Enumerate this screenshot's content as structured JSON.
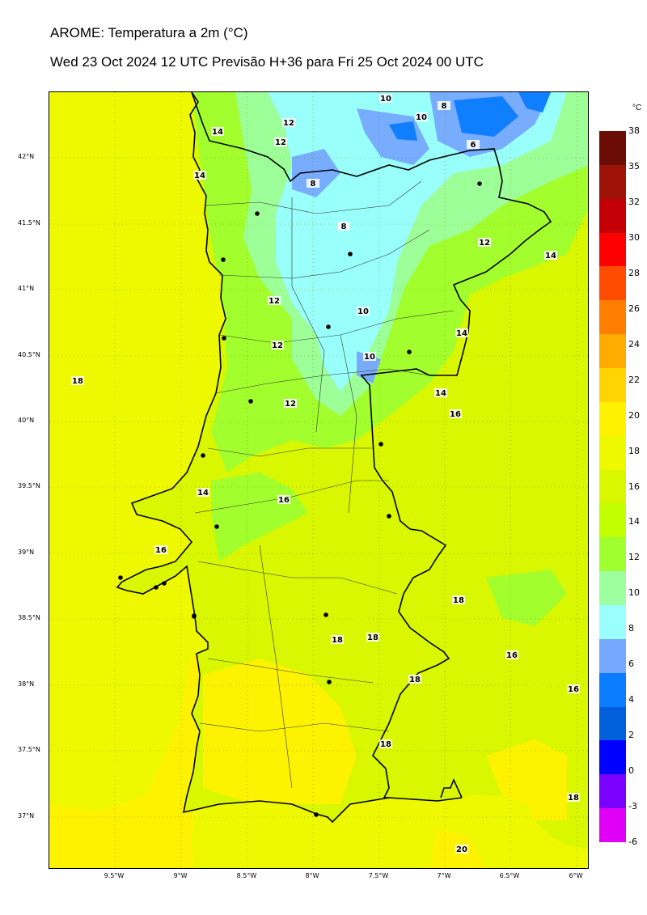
{
  "header": {
    "title": "AROME: Temperatura a 2m (°C)",
    "subtitle": "Wed 23 Oct 2024 12 UTC Previsão H+36 para Fri 25 Oct 2024 00 UTC"
  },
  "map": {
    "latitude_ticks": [
      "42°N",
      "41.5°N",
      "41°N",
      "40.5°N",
      "40°N",
      "39.5°N",
      "39°N",
      "38.5°N",
      "38°N",
      "37.5°N",
      "37°N"
    ],
    "longitude_ticks": [
      "9.5°W",
      "9°W",
      "8.5°W",
      "8°W",
      "7.5°W",
      "7°W",
      "6.5°W",
      "6°W"
    ],
    "contour_labels": [
      "10",
      "10",
      "8",
      "6",
      "12",
      "12",
      "14",
      "14",
      "8",
      "8",
      "12",
      "14",
      "12",
      "10",
      "14",
      "12",
      "10",
      "18",
      "12",
      "14",
      "16",
      "14",
      "16",
      "16",
      "18",
      "18",
      "18",
      "16",
      "18",
      "16",
      "18",
      "18",
      "20"
    ],
    "cities": 20,
    "colors": {
      "ocean": "#eef900",
      "ocean_warm": "#fff200",
      "land_base": "#d8f700",
      "cool_12": "#9fff2f",
      "cool_10": "#9dff9d",
      "cool_8": "#99ffff",
      "cold_6": "#76a8ff",
      "cold_4": "#0a7cff",
      "border": "#000000"
    }
  },
  "colorbar": {
    "unit": "°C",
    "labels": [
      "38",
      "35",
      "32",
      "30",
      "28",
      "26",
      "24",
      "22",
      "20",
      "18",
      "16",
      "14",
      "12",
      "10",
      "8",
      "6",
      "4",
      "2",
      "0",
      "-3",
      "-6"
    ],
    "colors": [
      "#6b0d05",
      "#9e1208",
      "#c40006",
      "#ff0000",
      "#ff4c00",
      "#ff7e00",
      "#ffab00",
      "#ffd400",
      "#fff200",
      "#eef900",
      "#d8f700",
      "#c2ff00",
      "#9fff2f",
      "#9dff9d",
      "#99ffff",
      "#76a8ff",
      "#0a7cff",
      "#0060dc",
      "#0000ff",
      "#7a00ff",
      "#e000f5"
    ]
  }
}
